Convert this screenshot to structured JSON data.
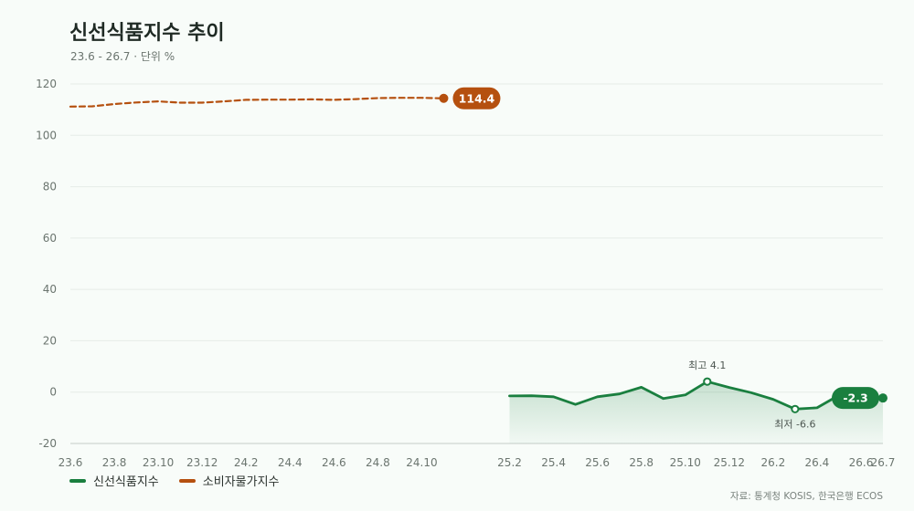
{
  "title": "신선식품지수 추이",
  "subtitle": "23.6 - 26.7 · 단위 %",
  "source": "자료: 통계청 KOSIS, 한국은행 ECOS",
  "chart_data": {
    "type": "line",
    "y_ticks": [
      120,
      100,
      80,
      60,
      40,
      20,
      0,
      -20
    ],
    "ylim": [
      -20,
      120
    ],
    "x_labels": [
      "23.6",
      "23.8",
      "23.10",
      "23.12",
      "24.2",
      "24.4",
      "24.6",
      "24.8",
      "24.10",
      "25.2",
      "25.4",
      "25.6",
      "25.8",
      "25.10",
      "25.12",
      "26.2",
      "26.4",
      "26.6",
      "26.7"
    ],
    "grid": true,
    "legend_position": "bottom-left",
    "series": [
      {
        "name": "신선식품지수",
        "color": "#1a7f3f",
        "style": "solid",
        "area": true,
        "x": [
          "25.2",
          "25.3",
          "25.4",
          "25.5",
          "25.6",
          "25.7",
          "25.8",
          "25.9",
          "25.10",
          "25.11",
          "25.12",
          "26.1",
          "26.2",
          "26.3",
          "26.4",
          "26.5",
          "26.6",
          "26.7"
        ],
        "values": [
          -1.5,
          -1.4,
          -1.8,
          -4.8,
          -1.8,
          -0.7,
          1.9,
          -2.5,
          -1.1,
          4.1,
          1.8,
          -0.2,
          -2.8,
          -6.6,
          -6.1,
          -1.2,
          -2.6,
          -2.3
        ],
        "end_label": "-2.3",
        "annotations": [
          {
            "label": "최고 4.1",
            "x": "25.11",
            "value": 4.1,
            "position": "above"
          },
          {
            "label": "최저 -6.6",
            "x": "26.3",
            "value": -6.6,
            "position": "below"
          }
        ]
      },
      {
        "name": "소비자물가지수",
        "color": "#b5500f",
        "style": "dashed",
        "area": false,
        "x": [
          "23.6",
          "23.7",
          "23.8",
          "23.9",
          "23.10",
          "23.11",
          "23.12",
          "24.1",
          "24.2",
          "24.3",
          "24.4",
          "24.5",
          "24.6",
          "24.7",
          "24.8",
          "24.9",
          "24.10",
          "24.11"
        ],
        "values": [
          111.2,
          111.3,
          112.2,
          112.8,
          113.2,
          112.7,
          112.7,
          113.2,
          113.8,
          113.9,
          113.9,
          114.0,
          113.8,
          114.1,
          114.5,
          114.6,
          114.6,
          114.4
        ],
        "end_label": "114.4"
      }
    ]
  }
}
